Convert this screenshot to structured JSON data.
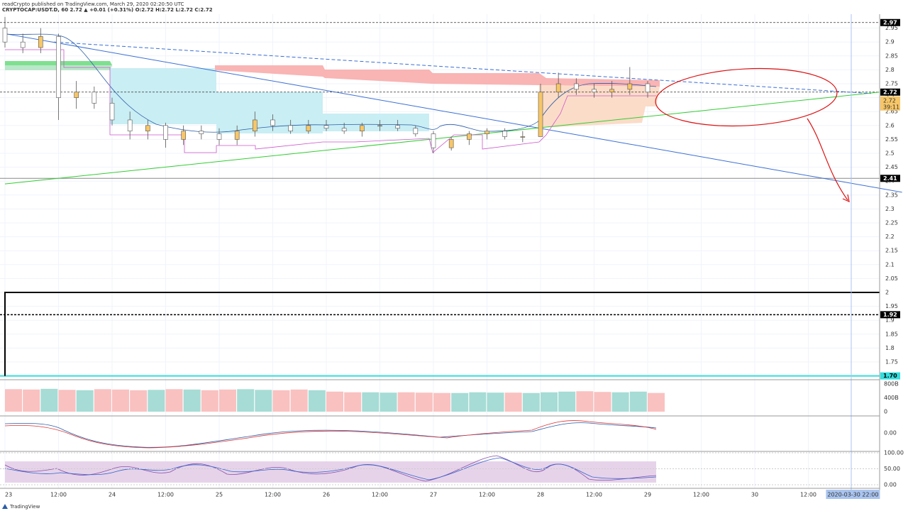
{
  "header": {
    "publisher": "readCrypto published on TradingView.com, March 29, 2020 02:20:50 UTC",
    "symbol": "CRYPTOCAP:USDT.D, 60 2.72 ▲ +0.01 (+0.31%) O:2.72 H:2.72 L:2.72 C:2.72"
  },
  "chart_data": {
    "type": "candlestick",
    "x": [
      0,
      4,
      8,
      12,
      16,
      20,
      24,
      28,
      32,
      36,
      40,
      44,
      48,
      52,
      56,
      60,
      64,
      68,
      72,
      76,
      80,
      84,
      88,
      92,
      96,
      100,
      104,
      108,
      112,
      116,
      120,
      124,
      128,
      132,
      136,
      140,
      144
    ],
    "open": [
      2.95,
      2.9,
      2.88,
      2.92,
      2.7,
      2.72,
      2.68,
      2.62,
      2.58,
      2.6,
      2.55,
      2.58,
      2.57,
      2.55,
      2.58,
      2.62,
      2.6,
      2.58,
      2.6,
      2.59,
      2.58,
      2.6,
      2.6,
      2.59,
      2.57,
      2.52,
      2.55,
      2.57,
      2.58,
      2.56,
      2.56,
      2.72,
      2.75,
      2.73,
      2.72,
      2.73,
      2.75
    ],
    "high": [
      2.99,
      2.93,
      2.95,
      2.93,
      2.76,
      2.74,
      2.7,
      2.65,
      2.62,
      2.61,
      2.6,
      2.6,
      2.59,
      2.6,
      2.65,
      2.64,
      2.62,
      2.62,
      2.62,
      2.61,
      2.61,
      2.62,
      2.62,
      2.6,
      2.58,
      2.56,
      2.58,
      2.59,
      2.59,
      2.58,
      2.75,
      2.79,
      2.77,
      2.75,
      2.76,
      2.81,
      2.76
    ],
    "low": [
      2.88,
      2.86,
      2.86,
      2.62,
      2.66,
      2.66,
      2.6,
      2.55,
      2.55,
      2.52,
      2.53,
      2.55,
      2.53,
      2.53,
      2.56,
      2.58,
      2.57,
      2.57,
      2.58,
      2.57,
      2.56,
      2.58,
      2.58,
      2.56,
      2.5,
      2.51,
      2.53,
      2.55,
      2.55,
      2.54,
      2.56,
      2.7,
      2.71,
      2.7,
      2.7,
      2.71,
      2.7
    ],
    "close": [
      2.9,
      2.88,
      2.92,
      2.7,
      2.72,
      2.68,
      2.62,
      2.58,
      2.6,
      2.55,
      2.58,
      2.57,
      2.55,
      2.58,
      2.62,
      2.6,
      2.58,
      2.6,
      2.59,
      2.58,
      2.6,
      2.6,
      2.59,
      2.57,
      2.52,
      2.55,
      2.57,
      2.58,
      2.56,
      2.56,
      2.72,
      2.75,
      2.73,
      2.72,
      2.73,
      2.75,
      2.72
    ],
    "volume": [
      650,
      640,
      660,
      630,
      620,
      650,
      640,
      620,
      630,
      650,
      640,
      620,
      640,
      650,
      630,
      620,
      640,
      620,
      580,
      560,
      560,
      550,
      560,
      550,
      540,
      540,
      560,
      550,
      550,
      540,
      560,
      580,
      590,
      570,
      560,
      580,
      540
    ],
    "ylim": [
      1.7,
      2.97
    ],
    "yticks": [
      2.95,
      2.9,
      2.85,
      2.8,
      2.75,
      2.7,
      2.65,
      2.6,
      2.55,
      2.5,
      2.45,
      2.4,
      2.35,
      2.3,
      2.25,
      2.2,
      2.15,
      2.1,
      2.05,
      2.0,
      1.95,
      1.9,
      1.85,
      1.8,
      1.75,
      1.7
    ],
    "price_labels": [
      {
        "value": 2.97,
        "label": "2.97"
      },
      {
        "value": 2.72,
        "label": "2.72"
      },
      {
        "value": 2.41,
        "label": "2.41"
      },
      {
        "value": 1.92,
        "label": "1.92"
      },
      {
        "value": 1.7,
        "label": "1.70"
      }
    ],
    "last_price": {
      "value": 2.72,
      "label": "2.72",
      "countdown": "39:11"
    },
    "box_top": 2.0,
    "trendlines": [
      {
        "color": "#3b6fd4",
        "dash": false,
        "x": [
          0,
          201
        ],
        "y": [
          2.93,
          2.36
        ]
      },
      {
        "color": "#33cc33",
        "dash": false,
        "x": [
          0,
          196
        ],
        "y": [
          2.39,
          2.72
        ]
      },
      {
        "color": "#3b6fd4",
        "dash": true,
        "x": [
          11,
          194
        ],
        "y": [
          2.9,
          2.715
        ]
      }
    ],
    "xticks": [
      {
        "value": 0,
        "label": "23"
      },
      {
        "value": 12,
        "label": "12:00"
      },
      {
        "value": 24,
        "label": "24"
      },
      {
        "value": 36,
        "label": "12:00"
      },
      {
        "value": 48,
        "label": "25"
      },
      {
        "value": 60,
        "label": "12:00"
      },
      {
        "value": 72,
        "label": "26"
      },
      {
        "value": 84,
        "label": "12:00"
      },
      {
        "value": 96,
        "label": "27"
      },
      {
        "value": 108,
        "label": "12:00"
      },
      {
        "value": 120,
        "label": "28"
      },
      {
        "value": 132,
        "label": "12:00"
      },
      {
        "value": 144,
        "label": "29"
      },
      {
        "value": 156,
        "label": "12:00"
      },
      {
        "value": 168,
        "label": "30"
      },
      {
        "value": 180,
        "label": "12:00"
      }
    ],
    "cursor_time": {
      "value": 190,
      "label": "2020-03-30  22:00"
    },
    "volume_ticks": [
      {
        "value": 800,
        "label": "800B"
      },
      {
        "value": 400,
        "label": "400B"
      },
      0
    ],
    "macd_ticks": [
      {
        "value": 0,
        "label": "0.00"
      }
    ],
    "rsi_ticks": [
      {
        "value": 100,
        "label": "100.00"
      },
      {
        "value": 50,
        "label": "50.00"
      },
      {
        "value": 0,
        "label": "0.00"
      }
    ]
  },
  "footer": "TradingView"
}
